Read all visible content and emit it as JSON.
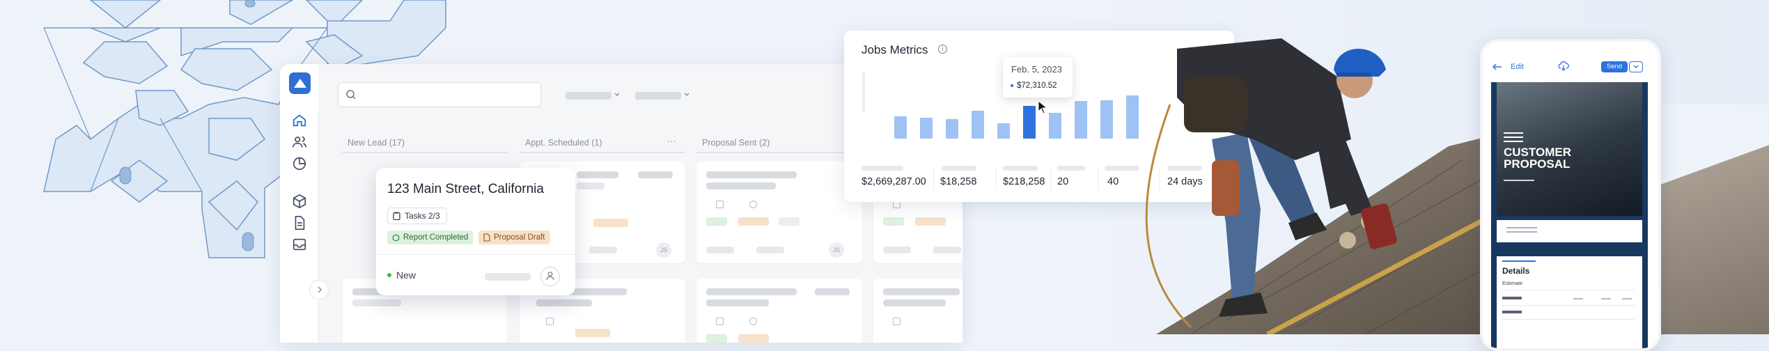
{
  "app": {
    "sidebar": {
      "icons": [
        "home-icon",
        "users-icon",
        "chart-pie-icon",
        "box-icon",
        "document-icon",
        "inbox-icon"
      ]
    },
    "columns": [
      {
        "title": "New Lead (17)"
      },
      {
        "title": "Appt. Scheduled (1)"
      },
      {
        "title": "Proposal Sent (2)"
      }
    ],
    "card_initials": "JS",
    "focus_card": {
      "title": "123 Main Street, California",
      "tasks": "Tasks 2/3",
      "tags": [
        "Report Completed",
        "Proposal Draft"
      ],
      "status": "New"
    }
  },
  "metrics": {
    "title": "Jobs Metrics",
    "tooltip": {
      "date": "Feb. 5, 2023",
      "value": "$72,310.52"
    },
    "values": [
      "$2,669,287.00",
      "$18,258",
      "$218,258",
      "20",
      "40",
      "24 days"
    ]
  },
  "chart_data": {
    "type": "bar",
    "title": "Jobs Metrics",
    "values": [
      32,
      30,
      28,
      40,
      22,
      47,
      37,
      54,
      55,
      62
    ],
    "highlight_index": 5,
    "colors": {
      "bar": "#9ec2f3",
      "highlight": "#2e72de"
    }
  },
  "phone": {
    "edit_label": "Edit",
    "send_label": "Send",
    "proposal_title": "CUSTOMER PROPOSAL",
    "details_heading": "Details",
    "details_subheading": "Estimate"
  }
}
